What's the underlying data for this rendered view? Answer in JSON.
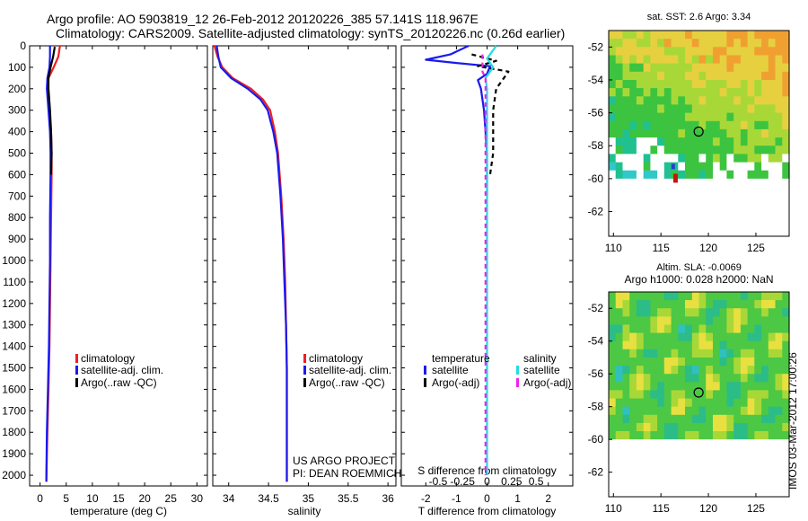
{
  "figure": {
    "title_line1": "Argo profile: AO 5903819_12 26-Feb-2012 20120226_385 57.141S 118.967E",
    "title_line2": "Climatology: CARS2009. Satellite-adjusted climatology: synTS_20120226.nc (0.26d earlier)",
    "watermark": "IMOS 03-Mar-2012 17:00:26",
    "project_line1": "US ARGO PROJECT",
    "project_line2": "PI: DEAN ROEMMICH"
  },
  "colors": {
    "climatology": "#ee2020",
    "satellite": "#1a1aee",
    "argo": "#000000",
    "sal_satellite": "#22dddd",
    "sal_argo": "#ee22ee"
  },
  "chart_data": [
    {
      "id": "temperature",
      "type": "line",
      "xlabel": "temperature (deg C)",
      "ylabel": "",
      "xlim": [
        -2,
        32
      ],
      "ylim": [
        2050,
        0
      ],
      "xticks": [
        0,
        5,
        10,
        15,
        20,
        25,
        30
      ],
      "yticks": [
        0,
        100,
        200,
        300,
        400,
        500,
        600,
        700,
        800,
        900,
        1000,
        1100,
        1200,
        1300,
        1400,
        1500,
        1600,
        1700,
        1800,
        1900,
        2000
      ],
      "series": [
        {
          "name": "climatology",
          "color": "#ee2020",
          "x": [
            3.8,
            3.5,
            2.6,
            1.6,
            1.5,
            1.8,
            2.1,
            2.2,
            2.2,
            2.1,
            2.0,
            1.9,
            1.8,
            1.6,
            1.4,
            1.2
          ],
          "y": [
            0,
            50,
            100,
            150,
            200,
            300,
            400,
            500,
            600,
            800,
            1000,
            1200,
            1400,
            1600,
            1800,
            2030
          ]
        },
        {
          "name": "satellite-adj. clim.",
          "color": "#1a1aee",
          "x": [
            1.9,
            1.9,
            1.8,
            1.4,
            1.3,
            1.6,
            1.9,
            2.0,
            2.0,
            1.9,
            1.9,
            1.8,
            1.7,
            1.5,
            1.3,
            1.2
          ],
          "y": [
            0,
            50,
            100,
            150,
            200,
            300,
            400,
            500,
            600,
            800,
            1000,
            1200,
            1400,
            1600,
            1800,
            2030
          ]
        },
        {
          "name": "Argo(..raw -QC)",
          "color": "#000000",
          "x": [
            2.8,
            2.5,
            2.0,
            1.6,
            1.6,
            1.9,
            2.1,
            2.2,
            2.1
          ],
          "y": [
            5,
            50,
            100,
            150,
            200,
            300,
            400,
            500,
            600
          ]
        }
      ],
      "legend": [
        "climatology",
        "satellite-adj. clim.",
        "Argo(..raw -QC)"
      ],
      "legend_placement": "lower-center"
    },
    {
      "id": "salinity",
      "type": "line",
      "xlabel": "salinity",
      "xlim": [
        33.8,
        36.1
      ],
      "ylim": [
        2050,
        0
      ],
      "xticks": [
        34,
        34.5,
        35,
        35.5,
        36
      ],
      "xtick_labels": [
        "34",
        "34.5",
        "35",
        "35.5",
        "36"
      ],
      "series": [
        {
          "name": "climatology",
          "color": "#ee2020",
          "x": [
            33.82,
            33.86,
            33.92,
            34.05,
            34.28,
            34.43,
            34.52,
            34.58,
            34.62,
            34.66,
            34.69,
            34.71,
            34.72,
            34.73,
            34.73,
            34.73
          ],
          "y": [
            0,
            50,
            100,
            150,
            200,
            250,
            300,
            400,
            500,
            700,
            900,
            1100,
            1300,
            1500,
            1800,
            2030
          ]
        },
        {
          "name": "satellite-adj. clim.",
          "color": "#1a1aee",
          "x": [
            33.85,
            33.87,
            33.9,
            34.03,
            34.24,
            34.4,
            34.49,
            34.56,
            34.61,
            34.65,
            34.68,
            34.7,
            34.72,
            34.73,
            34.73,
            34.73
          ],
          "y": [
            0,
            50,
            100,
            150,
            200,
            250,
            300,
            400,
            500,
            700,
            900,
            1100,
            1300,
            1500,
            1800,
            2030
          ]
        }
      ],
      "legend": [
        "climatology",
        "satellite-adj. clim.",
        "Argo(..raw -QC)"
      ],
      "legend_placement": "lower-center"
    },
    {
      "id": "difference",
      "type": "line",
      "xlabel": "T difference from climatology",
      "xlabel_top": "S difference from climatology",
      "xlim": [
        -2.8,
        2.8
      ],
      "ylim": [
        2050,
        0
      ],
      "xticks": [
        -2,
        -1,
        0,
        1,
        2
      ],
      "xtick_labels": [
        "-2",
        "-1",
        "0",
        "1",
        "2"
      ],
      "xticks_top": [
        -1.6,
        -0.8,
        0,
        0.8,
        1.6
      ],
      "xtick_labels_top": [
        "-0.5",
        "-0.25",
        "0",
        "0.25",
        "0.5"
      ],
      "series": [
        {
          "name": "temperature satellite",
          "color": "#1a1aee",
          "dash": false,
          "x": [
            -0.6,
            -1.2,
            -2.0,
            -1.0,
            0.1,
            0.0,
            -0.3,
            -0.2,
            -0.1,
            0.0,
            0.0,
            0.0
          ],
          "y": [
            0,
            40,
            65,
            80,
            95,
            130,
            160,
            200,
            300,
            500,
            650,
            700
          ]
        },
        {
          "name": "temperature Argo(-adj)",
          "color": "#000000",
          "dash": true,
          "x": [
            -0.5,
            0.3,
            -0.3,
            0.7,
            0.5,
            0.3,
            0.2,
            0.2,
            0.1
          ],
          "y": [
            40,
            70,
            95,
            120,
            160,
            200,
            300,
            500,
            600
          ]
        },
        {
          "name": "salinity satellite",
          "color": "#22dddd",
          "dash": false,
          "x": [
            0.3,
            0.0,
            0.2,
            -0.05,
            0.0,
            0.0,
            0.0,
            0.0
          ],
          "y": [
            0,
            60,
            100,
            150,
            200,
            400,
            1000,
            2000
          ]
        },
        {
          "name": "salinity Argo(-adj)",
          "color": "#ee22ee",
          "dash": true,
          "x": [
            -0.15,
            -0.15,
            -0.05,
            -0.05,
            -0.05,
            -0.05
          ],
          "y": [
            40,
            120,
            150,
            400,
            1000,
            2000
          ]
        }
      ],
      "legend": {
        "temperature_header": "temperature",
        "salinity_header": "salinity",
        "t_satellite": "satellite",
        "t_argo": "Argo(-adj)",
        "s_satellite": "satellite",
        "s_argo": "Argo(-adj)"
      },
      "legend_placement": "lower-center"
    },
    {
      "id": "sst_map",
      "type": "heatmap",
      "title": "sat. SST: 2.6 Argo: 3.34",
      "xlim": [
        109.5,
        128.5
      ],
      "ylim": [
        -63.5,
        -51
      ],
      "xticks": [
        110,
        115,
        120,
        125
      ],
      "yticks": [
        -52,
        -54,
        -56,
        -58,
        -60,
        -62
      ],
      "xtick_labels": [
        "110",
        "115",
        "120",
        "125"
      ],
      "ytick_labels": [
        "-52",
        "-54",
        "-56",
        "-58",
        "-60",
        "-62"
      ],
      "marker": {
        "lon": 118.967,
        "lat": -57.141
      }
    },
    {
      "id": "sla_map",
      "type": "heatmap",
      "title_line1": "Altim. SLA: -0.0069",
      "title_line2": "Argo h1000: 0.028 h2000: NaN",
      "xlim": [
        109.5,
        128.5
      ],
      "ylim": [
        -63.5,
        -51
      ],
      "xticks": [
        110,
        115,
        120,
        125
      ],
      "yticks": [
        -52,
        -54,
        -56,
        -58,
        -60,
        -62
      ],
      "xtick_labels": [
        "110",
        "115",
        "120",
        "125"
      ],
      "ytick_labels": [
        "-52",
        "-54",
        "-56",
        "-58",
        "-60",
        "-62"
      ],
      "marker": {
        "lon": 118.967,
        "lat": -57.141
      }
    }
  ]
}
